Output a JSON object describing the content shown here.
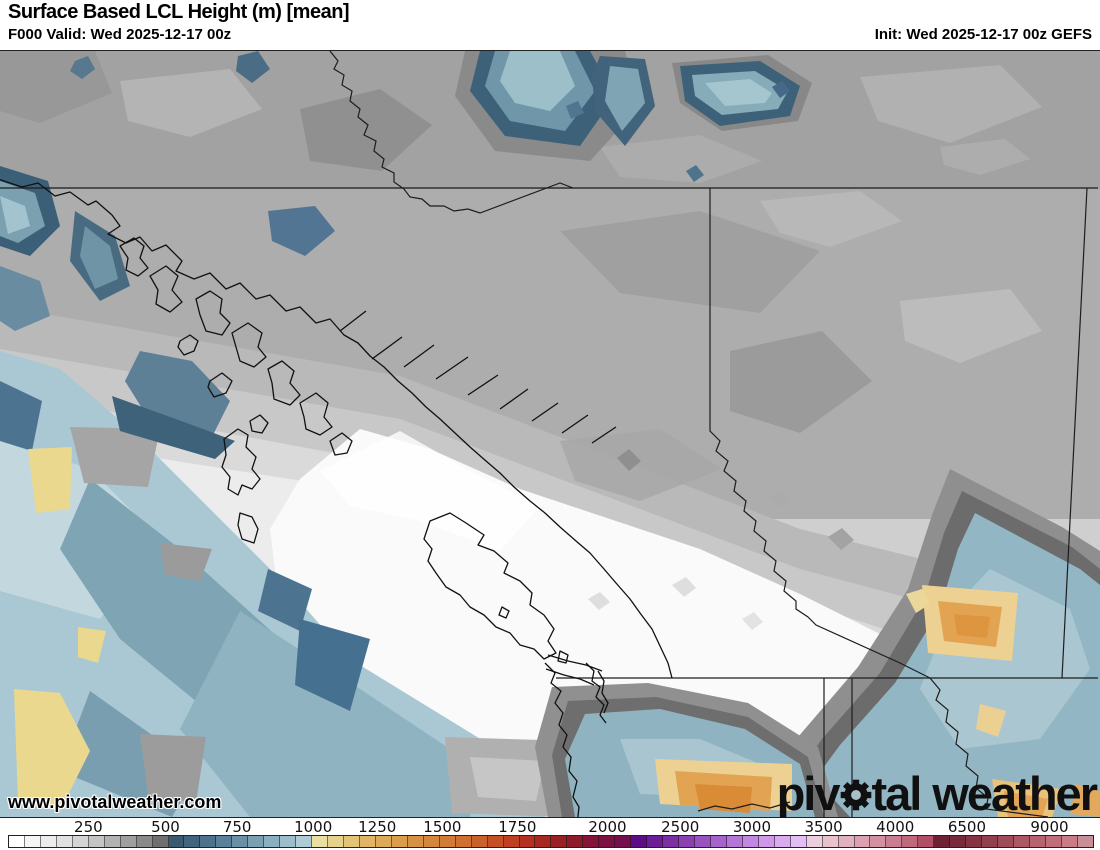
{
  "header": {
    "title": "Surface Based LCL Height (m) [mean]",
    "valid_label": "F000 Valid: Wed 2025-12-17 00z",
    "init_label": "Init: Wed 2025-12-17 00z GEFS"
  },
  "map": {
    "watermark": "www.pivotalweather.com",
    "logo": {
      "part1": "piv",
      "part2": "tal",
      "part3": "weather"
    }
  },
  "palette": {
    "low_white": "#ffffff",
    "gray_dark": "#6f6f6f",
    "blue_dark": "#3b5a6f",
    "blue_light": "#aecbd6",
    "yellow": "#e7d28b",
    "orange": "#d3863d",
    "red": "#be3f21",
    "purple": "#8b40b2",
    "maroon": "#6d2132"
  },
  "colorbar": {
    "ticks": [
      {
        "label": "250",
        "pos": 7.4
      },
      {
        "label": "500",
        "pos": 14.5
      },
      {
        "label": "750",
        "pos": 21.1
      },
      {
        "label": "1000",
        "pos": 28.1
      },
      {
        "label": "1250",
        "pos": 34.0
      },
      {
        "label": "1500",
        "pos": 40.0
      },
      {
        "label": "1750",
        "pos": 46.9
      },
      {
        "label": "2000",
        "pos": 55.2
      },
      {
        "label": "2500",
        "pos": 61.9
      },
      {
        "label": "3000",
        "pos": 68.5
      },
      {
        "label": "3500",
        "pos": 75.1
      },
      {
        "label": "4000",
        "pos": 81.7
      },
      {
        "label": "6500",
        "pos": 88.3
      },
      {
        "label": "9000",
        "pos": 95.9
      }
    ],
    "cells": [
      "#ffffff",
      "#f5f5f5",
      "#ececec",
      "#e1e1e1",
      "#d4d4d4",
      "#c4c4c4",
      "#b2b2b2",
      "#9f9f9f",
      "#8a8a8a",
      "#6f6f6f",
      "#3b5a6f",
      "#41647f",
      "#4d728b",
      "#5a8199",
      "#6a90a6",
      "#7ba0b2",
      "#8cafbf",
      "#9dbdca",
      "#aecbd6",
      "#e9dfa2",
      "#e7d28b",
      "#e3c477",
      "#e0b666",
      "#dcaa58",
      "#d99d4c",
      "#d69144",
      "#d3863d",
      "#d07b36",
      "#cd7030",
      "#c9612a",
      "#c45026",
      "#be3f21",
      "#b53021",
      "#a72823",
      "#992125",
      "#8d1b2c",
      "#841536",
      "#7c1141",
      "#740e4c",
      "#5e0c86",
      "#6d1d96",
      "#7c2ea4",
      "#8b40b2",
      "#9952c0",
      "#a763cc",
      "#b575d6",
      "#c287e0",
      "#cf99e8",
      "#dbabf0",
      "#e5bdf5",
      "#eccfdc",
      "#e9c2ce",
      "#e2b1bf",
      "#dba1b0",
      "#d390a1",
      "#ca7d90",
      "#c0687c",
      "#b04f66",
      "#6d2132",
      "#772a39",
      "#853443",
      "#92404e",
      "#9f4b59",
      "#ab5764",
      "#b6636f",
      "#c06f7a",
      "#c87d86",
      "#c98f96"
    ]
  }
}
